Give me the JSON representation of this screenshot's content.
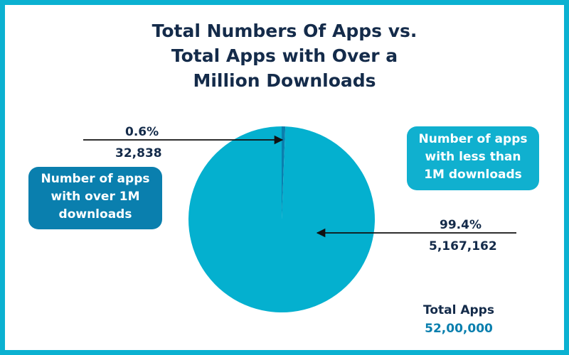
{
  "title_lines": [
    "Total Numbers Of Apps vs.",
    "Total Apps with Over a",
    "Million Downloads"
  ],
  "chart_data": {
    "type": "pie",
    "title": "Total Numbers Of Apps vs. Total Apps with Over a Million Downloads",
    "slices": [
      {
        "label": "Number of apps with over 1M downloads",
        "percent": "0.6%",
        "value_text": "32,838",
        "value": 32838,
        "color": "#0a7fae"
      },
      {
        "label": "Number of apps with less than 1M downloads",
        "percent": "99.4%",
        "value_text": "5,167,162",
        "value": 5167162,
        "color": "#04b0cf"
      }
    ],
    "total": {
      "label": "Total Apps",
      "value_text": "52,00,000",
      "value": 5200000
    }
  },
  "callouts": {
    "over": [
      "Number of apps",
      "with over 1M",
      "downloads"
    ],
    "less": [
      "Number of apps",
      "with less than",
      "1M downloads"
    ]
  },
  "colors": {
    "border": "#0bb1d1",
    "title": "#142b4a",
    "accent_dark": "#0a7fae",
    "accent_light": "#10b0cf"
  }
}
